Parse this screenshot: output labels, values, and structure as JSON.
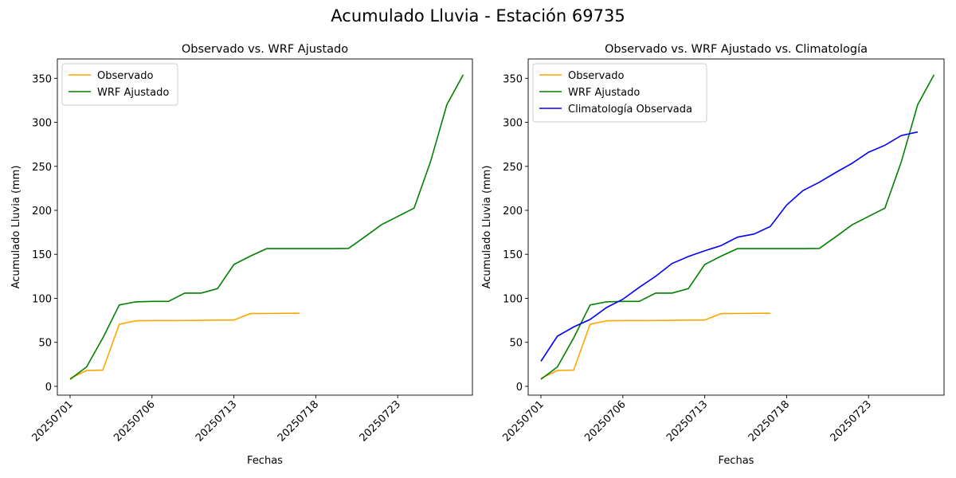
{
  "suptitle": "Acumulado Lluvia - Estación 69735",
  "chart_data": [
    {
      "type": "line",
      "title": "Observado vs. WRF Ajustado",
      "xlabel": "Fechas",
      "ylabel": "Acumulado Lluvia (mm)",
      "ylim": [
        -10,
        372
      ],
      "yticks": [
        0,
        50,
        100,
        150,
        200,
        250,
        300,
        350
      ],
      "xticks": [
        "20250701",
        "20250706",
        "20250713",
        "20250718",
        "20250723"
      ],
      "legend": "upper-left",
      "series": [
        {
          "name": "Observado",
          "color": "#ffa500",
          "points": [
            [
              0,
              9
            ],
            [
              1,
              18
            ],
            [
              2,
              18.5
            ],
            [
              3,
              70.5
            ],
            [
              4,
              74.5
            ],
            [
              5,
              74.7
            ],
            [
              6,
              74.7
            ],
            [
              7,
              74.8
            ],
            [
              8,
              75
            ],
            [
              9,
              75.3
            ],
            [
              10,
              75.4
            ],
            [
              11,
              82.7
            ],
            [
              12,
              82.8
            ],
            [
              13,
              83
            ],
            [
              14,
              83.1
            ]
          ]
        },
        {
          "name": "WRF Ajustado",
          "color": "#008000",
          "points": [
            [
              0,
              8
            ],
            [
              1,
              22
            ],
            [
              2,
              55
            ],
            [
              3,
              92.5
            ],
            [
              4,
              96
            ],
            [
              5,
              96.5
            ],
            [
              6,
              96.5
            ],
            [
              7,
              106
            ],
            [
              8,
              106
            ],
            [
              9,
              111
            ],
            [
              10,
              138.5
            ],
            [
              11,
              148
            ],
            [
              12,
              156.5
            ],
            [
              13,
              156.5
            ],
            [
              14,
              156.5
            ],
            [
              15,
              156.5
            ],
            [
              16,
              156.5
            ],
            [
              17,
              156.7
            ],
            [
              18,
              170
            ],
            [
              19,
              183.5
            ],
            [
              20,
              193
            ],
            [
              21,
              202.5
            ],
            [
              22,
              255
            ],
            [
              23,
              320
            ],
            [
              24,
              354
            ]
          ]
        }
      ]
    },
    {
      "type": "line",
      "title": "Observado vs. WRF Ajustado vs. Climatología",
      "xlabel": "Fechas",
      "ylabel": "Acumulado Lluvia (mm)",
      "ylim": [
        -10,
        372
      ],
      "yticks": [
        0,
        50,
        100,
        150,
        200,
        250,
        300,
        350
      ],
      "xticks": [
        "20250701",
        "20250706",
        "20250713",
        "20250718",
        "20250723"
      ],
      "legend": "upper-left",
      "series": [
        {
          "name": "Observado",
          "color": "#ffa500",
          "points": [
            [
              0,
              9
            ],
            [
              1,
              18
            ],
            [
              2,
              18.5
            ],
            [
              3,
              70.5
            ],
            [
              4,
              74.5
            ],
            [
              5,
              74.7
            ],
            [
              6,
              74.7
            ],
            [
              7,
              74.8
            ],
            [
              8,
              75
            ],
            [
              9,
              75.3
            ],
            [
              10,
              75.4
            ],
            [
              11,
              82.7
            ],
            [
              12,
              82.8
            ],
            [
              13,
              83
            ],
            [
              14,
              83.1
            ]
          ]
        },
        {
          "name": "WRF Ajustado",
          "color": "#008000",
          "points": [
            [
              0,
              8
            ],
            [
              1,
              22
            ],
            [
              2,
              55
            ],
            [
              3,
              92.5
            ],
            [
              4,
              96
            ],
            [
              5,
              96.5
            ],
            [
              6,
              96.5
            ],
            [
              7,
              106
            ],
            [
              8,
              106
            ],
            [
              9,
              111
            ],
            [
              10,
              138.5
            ],
            [
              11,
              148
            ],
            [
              12,
              156.5
            ],
            [
              13,
              156.5
            ],
            [
              14,
              156.5
            ],
            [
              15,
              156.5
            ],
            [
              16,
              156.5
            ],
            [
              17,
              156.7
            ],
            [
              18,
              170
            ],
            [
              19,
              183.5
            ],
            [
              20,
              193
            ],
            [
              21,
              202.5
            ],
            [
              22,
              255
            ],
            [
              23,
              320
            ],
            [
              24,
              354
            ]
          ]
        },
        {
          "name": "Climatología Observada",
          "color": "#0000ff",
          "points": [
            [
              0,
              28.5
            ],
            [
              1,
              57
            ],
            [
              2,
              67.5
            ],
            [
              3,
              76
            ],
            [
              4,
              89.5
            ],
            [
              5,
              99
            ],
            [
              6,
              112.5
            ],
            [
              7,
              125
            ],
            [
              8,
              139.5
            ],
            [
              9,
              147.5
            ],
            [
              10,
              154
            ],
            [
              11,
              160
            ],
            [
              12,
              169.5
            ],
            [
              13,
              173
            ],
            [
              14,
              181.5
            ],
            [
              15,
              206
            ],
            [
              16,
              222.5
            ],
            [
              17,
              232
            ],
            [
              18,
              243
            ],
            [
              19,
              253.5
            ],
            [
              20,
              266
            ],
            [
              21,
              274
            ],
            [
              22,
              285
            ],
            [
              23,
              289
            ]
          ]
        }
      ]
    }
  ]
}
